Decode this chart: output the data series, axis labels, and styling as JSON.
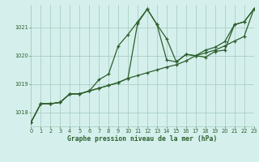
{
  "title": "Graphe pression niveau de la mer (hPa)",
  "bg_color": "#d5f0ec",
  "grid_color": "#a8cfc4",
  "line_color": "#2d5e2d",
  "text_color": "#2d5e2d",
  "xlim": [
    0,
    23
  ],
  "ylim": [
    1017.5,
    1021.8
  ],
  "yticks": [
    1018,
    1019,
    1020,
    1021
  ],
  "xtick_labels": [
    "0",
    "1",
    "2",
    "3",
    "4",
    "5",
    "6",
    "7",
    "8",
    "9",
    "10",
    "11",
    "12",
    "13",
    "14",
    "15",
    "16",
    "17",
    "18",
    "19",
    "20",
    "21",
    "22",
    "23"
  ],
  "series": [
    [
      1017.65,
      1018.3,
      1018.3,
      1018.35,
      1018.65,
      1018.65,
      1018.75,
      1018.85,
      1018.95,
      1019.05,
      1019.2,
      1021.15,
      1021.65,
      1021.1,
      1019.85,
      1019.78,
      1020.05,
      1020.0,
      1019.95,
      1020.15,
      1020.2,
      1021.1,
      1021.2,
      1021.65
    ],
    [
      1017.65,
      1018.3,
      1018.3,
      1018.35,
      1018.65,
      1018.65,
      1018.75,
      1019.15,
      1019.35,
      1020.35,
      1020.75,
      1021.2,
      1021.65,
      1021.1,
      1020.6,
      1019.78,
      1020.05,
      1020.0,
      1020.2,
      1020.3,
      1020.5,
      1021.1,
      1021.2,
      1021.65
    ],
    [
      1017.65,
      1018.3,
      1018.3,
      1018.35,
      1018.65,
      1018.65,
      1018.75,
      1018.85,
      1018.95,
      1019.05,
      1019.2,
      1019.3,
      1019.4,
      1019.5,
      1019.6,
      1019.68,
      1019.82,
      1020.0,
      1020.1,
      1020.2,
      1020.35,
      1020.52,
      1020.68,
      1021.65
    ]
  ]
}
